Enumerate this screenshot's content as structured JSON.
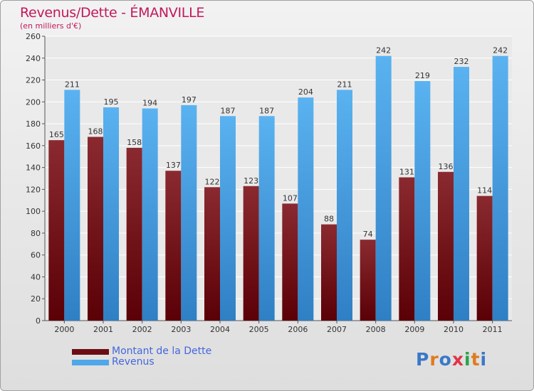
{
  "title": "Revenus/Dette - ÉMANVILLE",
  "subtitle": "(en milliers d'€)",
  "logo": {
    "letters": [
      "P",
      "r",
      "o",
      "x",
      "i",
      "t",
      "i"
    ],
    "colors": [
      "#3a78c8",
      "#e07a20",
      "#3a78c8",
      "#e2334a",
      "#2aa34a",
      "#e07a20",
      "#3a78c8"
    ]
  },
  "colors": {
    "dette": "#7a1f26",
    "revenus": "#4ea7e8"
  },
  "legend": [
    {
      "label": "Montant de la Dette",
      "color": "#6b0d12"
    },
    {
      "label": "Revenus",
      "color": "#4ea7e8"
    }
  ],
  "chart_data": {
    "type": "bar",
    "title": "Revenus/Dette - ÉMANVILLE",
    "ylabel": "",
    "xlabel": "",
    "ylim": [
      0,
      260
    ],
    "yticks": [
      0,
      20,
      40,
      60,
      80,
      100,
      120,
      140,
      160,
      180,
      200,
      220,
      240,
      260
    ],
    "grid": true,
    "legend_position": "bottom-left",
    "categories": [
      "2000",
      "2001",
      "2002",
      "2003",
      "2004",
      "2005",
      "2006",
      "2007",
      "2008",
      "2009",
      "2010",
      "2011"
    ],
    "series": [
      {
        "name": "Montant de la Dette",
        "values": [
          165,
          168,
          158,
          137,
          122,
          123,
          107,
          88,
          74,
          131,
          136,
          114
        ]
      },
      {
        "name": "Revenus",
        "values": [
          211,
          195,
          194,
          197,
          187,
          187,
          204,
          211,
          242,
          219,
          232,
          242
        ]
      }
    ]
  }
}
